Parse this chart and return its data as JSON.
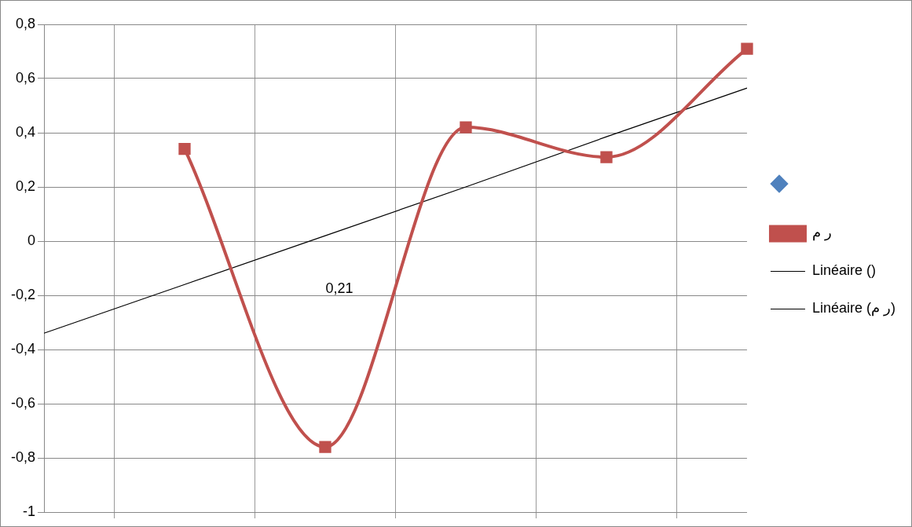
{
  "chart_data": {
    "type": "line",
    "categories": [
      null,
      null,
      null,
      null,
      null,
      null
    ],
    "series": [
      {
        "color": "#4f81bd",
        "marker": "diamond",
        "values": [
          null,
          null,
          null,
          null,
          null,
          null
        ]
      },
      {
        "name": "ر م",
        "color": "#c0504d",
        "marker": "square",
        "values": [
          null,
          0.34,
          -0.76,
          0.42,
          0.31,
          0.71
        ]
      },
      {
        "name": "Linéaire ()",
        "color": "#000000",
        "marker": "none",
        "values": [
          null,
          null,
          null,
          null,
          null,
          null
        ]
      },
      {
        "name": "Linéaire (ر م)",
        "color": "#000000",
        "marker": "none",
        "values": [
          -0.34,
          -0.16,
          0.02,
          0.2,
          0.385,
          0.565
        ]
      }
    ],
    "ylim": [
      -1,
      0.8
    ],
    "yticks": [
      {
        "value": -1,
        "label": "-1"
      },
      {
        "value": -0.8,
        "label": "-0,8"
      },
      {
        "value": -0.6,
        "label": "-0,6"
      },
      {
        "value": -0.4,
        "label": "-0,4"
      },
      {
        "value": -0.2,
        "label": "-0,2"
      },
      {
        "value": 0,
        "label": "0"
      },
      {
        "value": 0.2,
        "label": "0,2"
      },
      {
        "value": 0.4,
        "label": "0,4"
      },
      {
        "value": 0.6,
        "label": "0,6"
      },
      {
        "value": 0.8,
        "label": "0,8"
      }
    ],
    "annotations": [
      "0,21"
    ],
    "grid": true,
    "legend": "right",
    "tick_labels": "y"
  }
}
